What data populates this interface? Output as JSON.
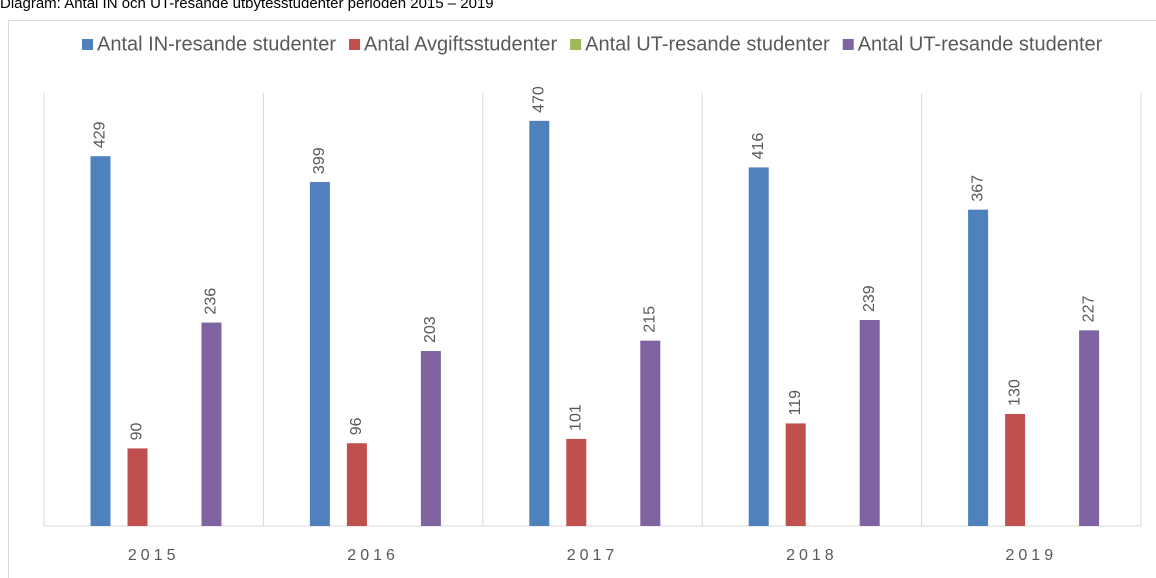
{
  "chart_data": {
    "type": "bar",
    "title": "Diagram: Antal IN och UT-resande utbytesstudenter perioden 2015 – 2019",
    "categories": [
      "2015",
      "2016",
      "2017",
      "2018",
      "2019"
    ],
    "series": [
      {
        "name": "Antal IN-resande studenter",
        "color": "#4f81bd",
        "values": [
          429,
          399,
          470,
          416,
          367
        ]
      },
      {
        "name": "Antal Avgiftsstudenter",
        "color": "#c0504d",
        "values": [
          90,
          96,
          101,
          119,
          130
        ]
      },
      {
        "name": "Antal UT-resande studenter",
        "color": "#9bbb59",
        "values": [
          null,
          null,
          null,
          null,
          null
        ]
      },
      {
        "name": "Antal UT-resande studenter",
        "color": "#8064a2",
        "values": [
          236,
          203,
          215,
          239,
          227
        ]
      }
    ],
    "ylim": [
      0,
      500
    ]
  }
}
